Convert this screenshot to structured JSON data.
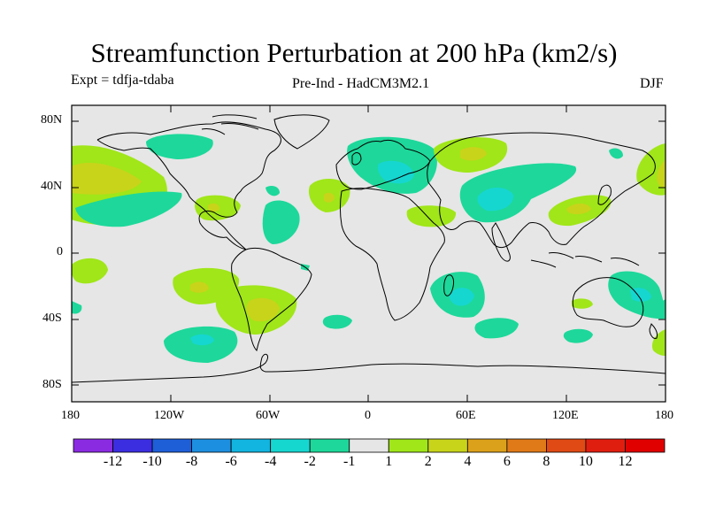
{
  "title": "Streamfunction Perturbation at 200 hPa (km2/s)",
  "left_subtitle": "Expt = tdfja-tdaba",
  "center_subtitle": "Pre-Ind - HadCM3M2.1",
  "right_subtitle": "DJF",
  "lat_labels": [
    "80N",
    "40N",
    "0",
    "40S",
    "80S"
  ],
  "lon_labels": [
    "180",
    "120W",
    "60W",
    "0",
    "60E",
    "120E",
    "180"
  ],
  "colorbar": {
    "labels": [
      "-12",
      "-10",
      "-8",
      "-6",
      "-4",
      "-2",
      "-1",
      "1",
      "2",
      "4",
      "6",
      "8",
      "10",
      "12"
    ],
    "colors": [
      "#8a2be2",
      "#3b2ee0",
      "#1e5fd8",
      "#1d8fe0",
      "#12b4e0",
      "#16d6d0",
      "#1dd89a",
      "#e6e6e6",
      "#a0e619",
      "#c8d41a",
      "#dca11a",
      "#e07a18",
      "#e04a14",
      "#e01e10",
      "#e00000"
    ]
  },
  "colors": {
    "ocean_land_bg": "#e6e6e6",
    "neg1": "#1dd89a",
    "neg2": "#16d6d0",
    "neg4": "#12b4e0",
    "pos1": "#a0e619",
    "pos2": "#c8d41a",
    "pos4": "#dca11a"
  },
  "map_data": {
    "projection": "cylindrical-equidistant",
    "lon_range": [
      -180,
      180
    ],
    "lat_range": [
      -90,
      90
    ],
    "anomalies": [
      {
        "region": "North Pacific",
        "lon": -165,
        "lat": 45,
        "level": 2,
        "sign": "positive"
      },
      {
        "region": "North Pacific core",
        "lon": -165,
        "lat": 45,
        "level": 4,
        "sign": "positive"
      },
      {
        "region": "Alaska / Canada",
        "lon": -120,
        "lat": 65,
        "level": 1,
        "sign": "negative"
      },
      {
        "region": "East Pacific subtropics",
        "lon": -155,
        "lat": 25,
        "level": 1,
        "sign": "negative"
      },
      {
        "region": "Gulf of Mexico",
        "lon": -90,
        "lat": 27,
        "level": 2,
        "sign": "positive"
      },
      {
        "region": "West Atlantic",
        "lon": -60,
        "lat": 20,
        "level": 1,
        "sign": "negative"
      },
      {
        "region": "North Atlantic",
        "lon": -25,
        "lat": 35,
        "level": 2,
        "sign": "positive"
      },
      {
        "region": "Europe",
        "lon": 20,
        "lat": 55,
        "level": 2,
        "sign": "negative"
      },
      {
        "region": "Siberia",
        "lon": 60,
        "lat": 62,
        "level": 2,
        "sign": "positive"
      },
      {
        "region": "Central Asia",
        "lon": 70,
        "lat": 33,
        "level": 4,
        "sign": "negative"
      },
      {
        "region": "Middle East",
        "lon": 35,
        "lat": 25,
        "level": 1,
        "sign": "positive"
      },
      {
        "region": "East Asia",
        "lon": 125,
        "lat": 28,
        "level": 2,
        "sign": "positive"
      },
      {
        "region": "NE Pacific",
        "lon": 170,
        "lat": 45,
        "level": 4,
        "sign": "positive"
      },
      {
        "region": "South America",
        "lon": -55,
        "lat": -32,
        "level": 4,
        "sign": "positive"
      },
      {
        "region": "South Pacific",
        "lon": -105,
        "lat": -22,
        "level": 2,
        "sign": "positive"
      },
      {
        "region": "Southern Ocean Pacific",
        "lon": -100,
        "lat": -52,
        "level": 4,
        "sign": "negative"
      },
      {
        "region": "SW Indian Ocean",
        "lon": 55,
        "lat": -32,
        "level": 4,
        "sign": "negative"
      },
      {
        "region": "Australia",
        "lon": 160,
        "lat": -30,
        "level": 4,
        "sign": "negative"
      }
    ]
  }
}
